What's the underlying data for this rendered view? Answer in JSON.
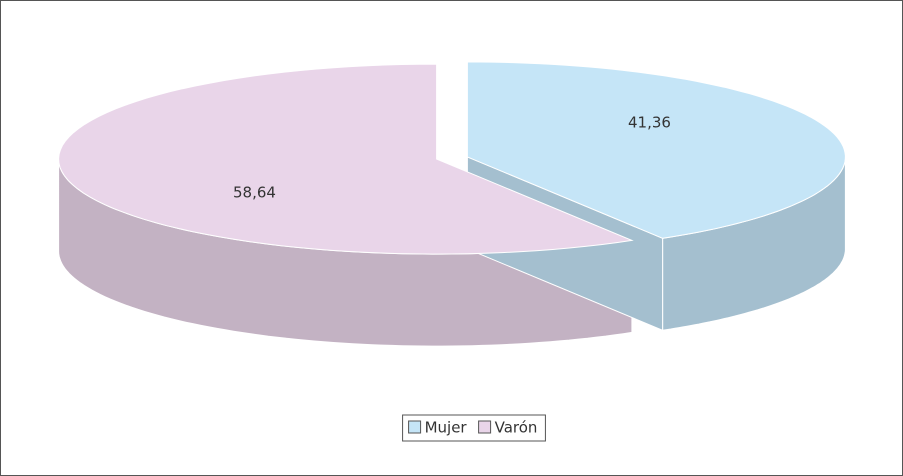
{
  "chart_data": {
    "type": "pie3d",
    "categories": [
      "Mujer",
      "Varón"
    ],
    "values": [
      41.36,
      58.64
    ],
    "value_labels": [
      "41,36",
      "58,64"
    ],
    "colors": [
      "#c5e5f7",
      "#e9d5e9"
    ],
    "side_colors": [
      "#a4bfcf",
      "#c3b2c3"
    ],
    "legend": "bottom"
  }
}
